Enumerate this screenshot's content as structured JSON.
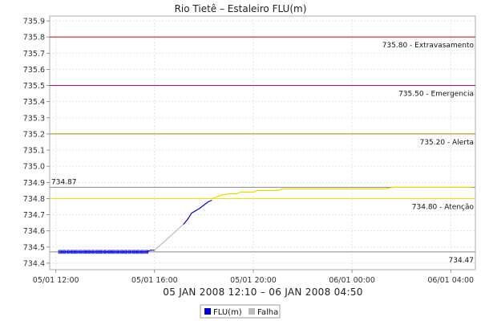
{
  "chart_data": {
    "type": "line",
    "title": "Rio Tietê – Estaleiro FLU(m)",
    "subtitle": "05 JAN 2008 12:10 – 06 JAN 2008 04:50",
    "xlim": [
      11.75,
      29.0
    ],
    "ylim": [
      734.36,
      735.93
    ],
    "x_ticks": [
      {
        "value": 12,
        "label": "05/01 12:00"
      },
      {
        "value": 16,
        "label": "05/01 16:00"
      },
      {
        "value": 20,
        "label": "05/01 20:00"
      },
      {
        "value": 24,
        "label": "06/01 00:00"
      },
      {
        "value": 28,
        "label": "06/01 04:00"
      }
    ],
    "y_ticks": [
      734.4,
      734.5,
      734.6,
      734.7,
      734.8,
      734.9,
      735.0,
      735.1,
      735.2,
      735.3,
      735.4,
      735.5,
      735.6,
      735.7,
      735.8,
      735.9
    ],
    "y_tick_labels": [
      "734.4",
      "734.5",
      "734.6",
      "734.7",
      "734.8",
      "734.9",
      "735.0",
      "735.1",
      "735.2",
      "735.3",
      "735.4",
      "735.5",
      "735.6",
      "735.7",
      "735.8",
      "735.9"
    ],
    "grid": true,
    "thresholds": [
      {
        "value": 735.8,
        "label": "735.80 - Extravasamento",
        "color": "#cc0000"
      },
      {
        "value": 735.5,
        "label": "735.50 - Emergencia",
        "color": "#b000b0"
      },
      {
        "value": 735.2,
        "label": "735.20 - Alerta",
        "color": "#b08800"
      },
      {
        "value": 734.8,
        "label": "734.80 - Atenção",
        "color": "#e8e800"
      }
    ],
    "reference_lines": [
      {
        "value": 734.87,
        "label": "734.87",
        "color": "#888888",
        "label_side": "left"
      },
      {
        "value": 734.47,
        "label": "734.47",
        "color": "#888888",
        "label_side": "right"
      }
    ],
    "series": [
      {
        "name": "FLU(m)",
        "color": "#0000dd",
        "marker": "square",
        "x": [
          12.17,
          12.33,
          12.5,
          12.67,
          12.83,
          13.0,
          13.17,
          13.33,
          13.5,
          13.67,
          13.83,
          14.0,
          14.17,
          14.33,
          14.5,
          14.67,
          14.83,
          15.0,
          15.17,
          15.33,
          15.5,
          15.67
        ],
        "y": [
          734.47,
          734.47,
          734.47,
          734.47,
          734.47,
          734.47,
          734.47,
          734.47,
          734.47,
          734.47,
          734.47,
          734.47,
          734.47,
          734.47,
          734.47,
          734.47,
          734.47,
          734.47,
          734.47,
          734.47,
          734.47,
          734.47
        ]
      },
      {
        "name": "FLU(m)",
        "color": "#0000dd",
        "marker": "none",
        "x": [
          15.67,
          15.83,
          16.0
        ],
        "y": [
          734.47,
          734.48,
          734.48
        ]
      },
      {
        "name": "Falha",
        "color": "#bbbbbb",
        "marker": "none",
        "x": [
          16.0,
          17.17
        ],
        "y": [
          734.48,
          734.64
        ]
      },
      {
        "name": "FLU(m)",
        "color": "#0000dd",
        "marker": "none",
        "x": [
          17.17,
          17.33,
          17.5,
          17.83,
          18.0,
          18.17,
          18.33
        ],
        "y": [
          734.64,
          734.67,
          734.71,
          734.74,
          734.76,
          734.78,
          734.79
        ]
      },
      {
        "name": "FLU(m)",
        "color": "#f0d800",
        "marker": "none",
        "x": [
          18.33,
          18.5,
          18.67,
          19.0,
          19.33,
          19.5,
          19.83,
          20.0,
          20.17,
          21.0,
          21.17,
          22.0,
          22.5,
          23.0,
          24.0,
          25.0,
          25.33,
          25.67,
          26.0,
          27.0,
          28.0,
          28.83
        ],
        "y": [
          734.8,
          734.81,
          734.82,
          734.83,
          734.83,
          734.84,
          734.84,
          734.84,
          734.85,
          734.85,
          734.86,
          734.86,
          734.86,
          734.86,
          734.86,
          734.86,
          734.86,
          734.87,
          734.87,
          734.87,
          734.87,
          734.87
        ]
      }
    ],
    "legend": {
      "placement": "bottom",
      "items": [
        {
          "label": "FLU(m)",
          "color": "#0000dd"
        },
        {
          "label": "Falha",
          "color": "#bbbbbb"
        }
      ]
    }
  }
}
